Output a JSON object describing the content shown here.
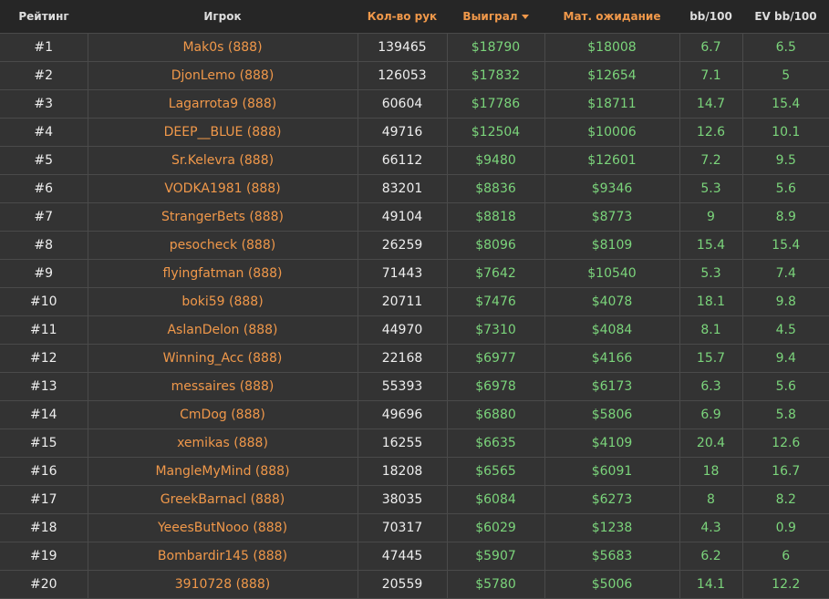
{
  "colors": {
    "accent": "#f0984a",
    "positive": "#7bd47b",
    "background": "#333333"
  },
  "headers": [
    "Рейтинг",
    "Игрок",
    "Кол-во рук",
    "Выиграл",
    "Мат. ожидание",
    "bb/100",
    "EV bb/100"
  ],
  "sorted_column": "Выиграл",
  "sort_icon": "caret-down-icon",
  "rows": [
    [
      "#1",
      "Mak0s (888)",
      "139465",
      "$18790",
      "$18008",
      "6.7",
      "6.5"
    ],
    [
      "#2",
      "DjonLemo (888)",
      "126053",
      "$17832",
      "$12654",
      "7.1",
      "5"
    ],
    [
      "#3",
      "Lagarrota9 (888)",
      "60604",
      "$17786",
      "$18711",
      "14.7",
      "15.4"
    ],
    [
      "#4",
      "DEEP__BLUE (888)",
      "49716",
      "$12504",
      "$10006",
      "12.6",
      "10.1"
    ],
    [
      "#5",
      "Sr.Kelevra (888)",
      "66112",
      "$9480",
      "$12601",
      "7.2",
      "9.5"
    ],
    [
      "#6",
      "VODKA1981 (888)",
      "83201",
      "$8836",
      "$9346",
      "5.3",
      "5.6"
    ],
    [
      "#7",
      "StrangerBets (888)",
      "49104",
      "$8818",
      "$8773",
      "9",
      "8.9"
    ],
    [
      "#8",
      "pesocheck (888)",
      "26259",
      "$8096",
      "$8109",
      "15.4",
      "15.4"
    ],
    [
      "#9",
      "flyingfatman (888)",
      "71443",
      "$7642",
      "$10540",
      "5.3",
      "7.4"
    ],
    [
      "#10",
      "boki59 (888)",
      "20711",
      "$7476",
      "$4078",
      "18.1",
      "9.8"
    ],
    [
      "#11",
      "AslanDelon (888)",
      "44970",
      "$7310",
      "$4084",
      "8.1",
      "4.5"
    ],
    [
      "#12",
      "Winning_Acc (888)",
      "22168",
      "$6977",
      "$4166",
      "15.7",
      "9.4"
    ],
    [
      "#13",
      "messaires (888)",
      "55393",
      "$6978",
      "$6173",
      "6.3",
      "5.6"
    ],
    [
      "#14",
      "CmDog (888)",
      "49696",
      "$6880",
      "$5806",
      "6.9",
      "5.8"
    ],
    [
      "#15",
      "xemikas (888)",
      "16255",
      "$6635",
      "$4109",
      "20.4",
      "12.6"
    ],
    [
      "#16",
      "MangleMyMind (888)",
      "18208",
      "$6565",
      "$6091",
      "18",
      "16.7"
    ],
    [
      "#17",
      "GreekBarnacl (888)",
      "38035",
      "$6084",
      "$6273",
      "8",
      "8.2"
    ],
    [
      "#18",
      "YeeesButNooo (888)",
      "70317",
      "$6029",
      "$1238",
      "4.3",
      "0.9"
    ],
    [
      "#19",
      "Bombardir145 (888)",
      "47445",
      "$5907",
      "$5683",
      "6.2",
      "6"
    ],
    [
      "#20",
      "3910728 (888)",
      "20559",
      "$5780",
      "$5006",
      "14.1",
      "12.2"
    ]
  ]
}
